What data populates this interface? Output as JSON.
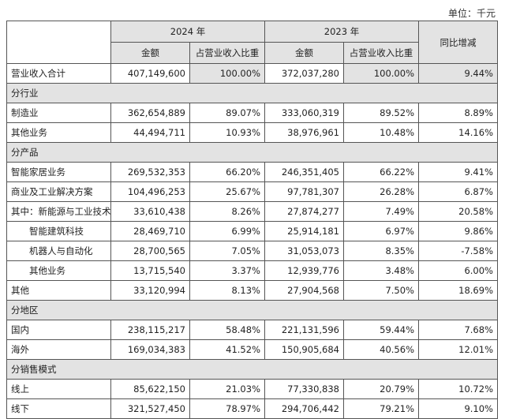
{
  "unit_label": "单位：千元",
  "headers": {
    "year_2024": "2024 年",
    "year_2023": "2023 年",
    "yoy": "同比增减",
    "amount": "金额",
    "share": "占营业收入比重"
  },
  "rows": [
    {
      "type": "data",
      "label": "营业收入合计",
      "a24": "407,149,600",
      "p24": "100.00%",
      "a23": "372,037,280",
      "p23": "100.00%",
      "yoy": "9.44%",
      "shade": true
    },
    {
      "type": "section",
      "label": "分行业"
    },
    {
      "type": "data",
      "label": "制造业",
      "a24": "362,654,889",
      "p24": "89.07%",
      "a23": "333,060,319",
      "p23": "89.52%",
      "yoy": "8.89%"
    },
    {
      "type": "data",
      "label": "其他业务",
      "a24": "44,494,711",
      "p24": "10.93%",
      "a23": "38,976,961",
      "p23": "10.48%",
      "yoy": "14.16%"
    },
    {
      "type": "section",
      "label": "分产品"
    },
    {
      "type": "data",
      "label": "智能家居业务",
      "a24": "269,532,353",
      "p24": "66.20%",
      "a23": "246,351,405",
      "p23": "66.22%",
      "yoy": "9.41%"
    },
    {
      "type": "data",
      "label": "商业及工业解决方案",
      "a24": "104,496,253",
      "p24": "25.67%",
      "a23": "97,781,307",
      "p23": "26.28%",
      "yoy": "6.87%"
    },
    {
      "type": "data",
      "label": "其中：新能源与工业技术",
      "a24": "33,610,438",
      "p24": "8.26%",
      "a23": "27,874,277",
      "p23": "7.49%",
      "yoy": "20.58%"
    },
    {
      "type": "data",
      "label": "智能建筑科技",
      "a24": "28,469,710",
      "p24": "6.99%",
      "a23": "25,914,181",
      "p23": "6.97%",
      "yoy": "9.86%",
      "indent": true
    },
    {
      "type": "data",
      "label": "机器人与自动化",
      "a24": "28,700,565",
      "p24": "7.05%",
      "a23": "31,053,073",
      "p23": "8.35%",
      "yoy": "-7.58%",
      "indent": true
    },
    {
      "type": "data",
      "label": "其他业务",
      "a24": "13,715,540",
      "p24": "3.37%",
      "a23": "12,939,776",
      "p23": "3.48%",
      "yoy": "6.00%",
      "indent": true
    },
    {
      "type": "data",
      "label": "其他",
      "a24": "33,120,994",
      "p24": "8.13%",
      "a23": "27,904,568",
      "p23": "7.50%",
      "yoy": "18.69%"
    },
    {
      "type": "section",
      "label": "分地区"
    },
    {
      "type": "data",
      "label": "国内",
      "a24": "238,115,217",
      "p24": "58.48%",
      "a23": "221,131,596",
      "p23": "59.44%",
      "yoy": "7.68%"
    },
    {
      "type": "data",
      "label": "海外",
      "a24": "169,034,383",
      "p24": "41.52%",
      "a23": "150,905,684",
      "p23": "40.56%",
      "yoy": "12.01%"
    },
    {
      "type": "section",
      "label": "分销售模式"
    },
    {
      "type": "data",
      "label": "线上",
      "a24": "85,622,150",
      "p24": "21.03%",
      "a23": "77,330,838",
      "p23": "20.79%",
      "yoy": "10.72%"
    },
    {
      "type": "data",
      "label": "线下",
      "a24": "321,527,450",
      "p24": "78.97%",
      "a23": "294,706,442",
      "p23": "79.21%",
      "yoy": "9.10%"
    }
  ]
}
